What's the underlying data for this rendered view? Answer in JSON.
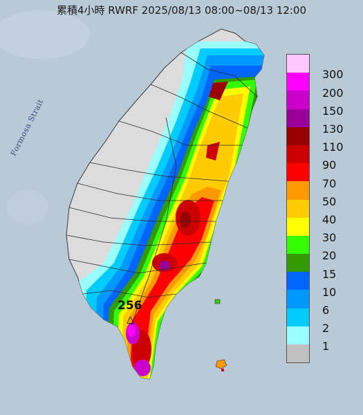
{
  "title": "累積4小時 RWRF 2025/08/13 08:00~08/13 12:00",
  "map_labels": {
    "strait": "Formosa Strait",
    "peak_value": "256",
    "peak_marker": "△"
  },
  "legend": {
    "levels": [
      {
        "label": "300",
        "color": "#ffc6ff"
      },
      {
        "label": "200",
        "color": "#ff00ff"
      },
      {
        "label": "150",
        "color": "#cc00cc"
      },
      {
        "label": "130",
        "color": "#990099"
      },
      {
        "label": "110",
        "color": "#990000"
      },
      {
        "label": "90",
        "color": "#cc0000"
      },
      {
        "label": "70",
        "color": "#ff0000"
      },
      {
        "label": "50",
        "color": "#ff9900"
      },
      {
        "label": "40",
        "color": "#ffcc00"
      },
      {
        "label": "30",
        "color": "#ffff00"
      },
      {
        "label": "20",
        "color": "#33ff00"
      },
      {
        "label": "15",
        "color": "#339900"
      },
      {
        "label": "10",
        "color": "#0066ff"
      },
      {
        "label": "6",
        "color": "#0099ff"
      },
      {
        "label": "2",
        "color": "#00ccff"
      },
      {
        "label": "1",
        "color": "#99ffff"
      },
      {
        "label": "",
        "color": "#c0c0c0"
      }
    ]
  }
}
